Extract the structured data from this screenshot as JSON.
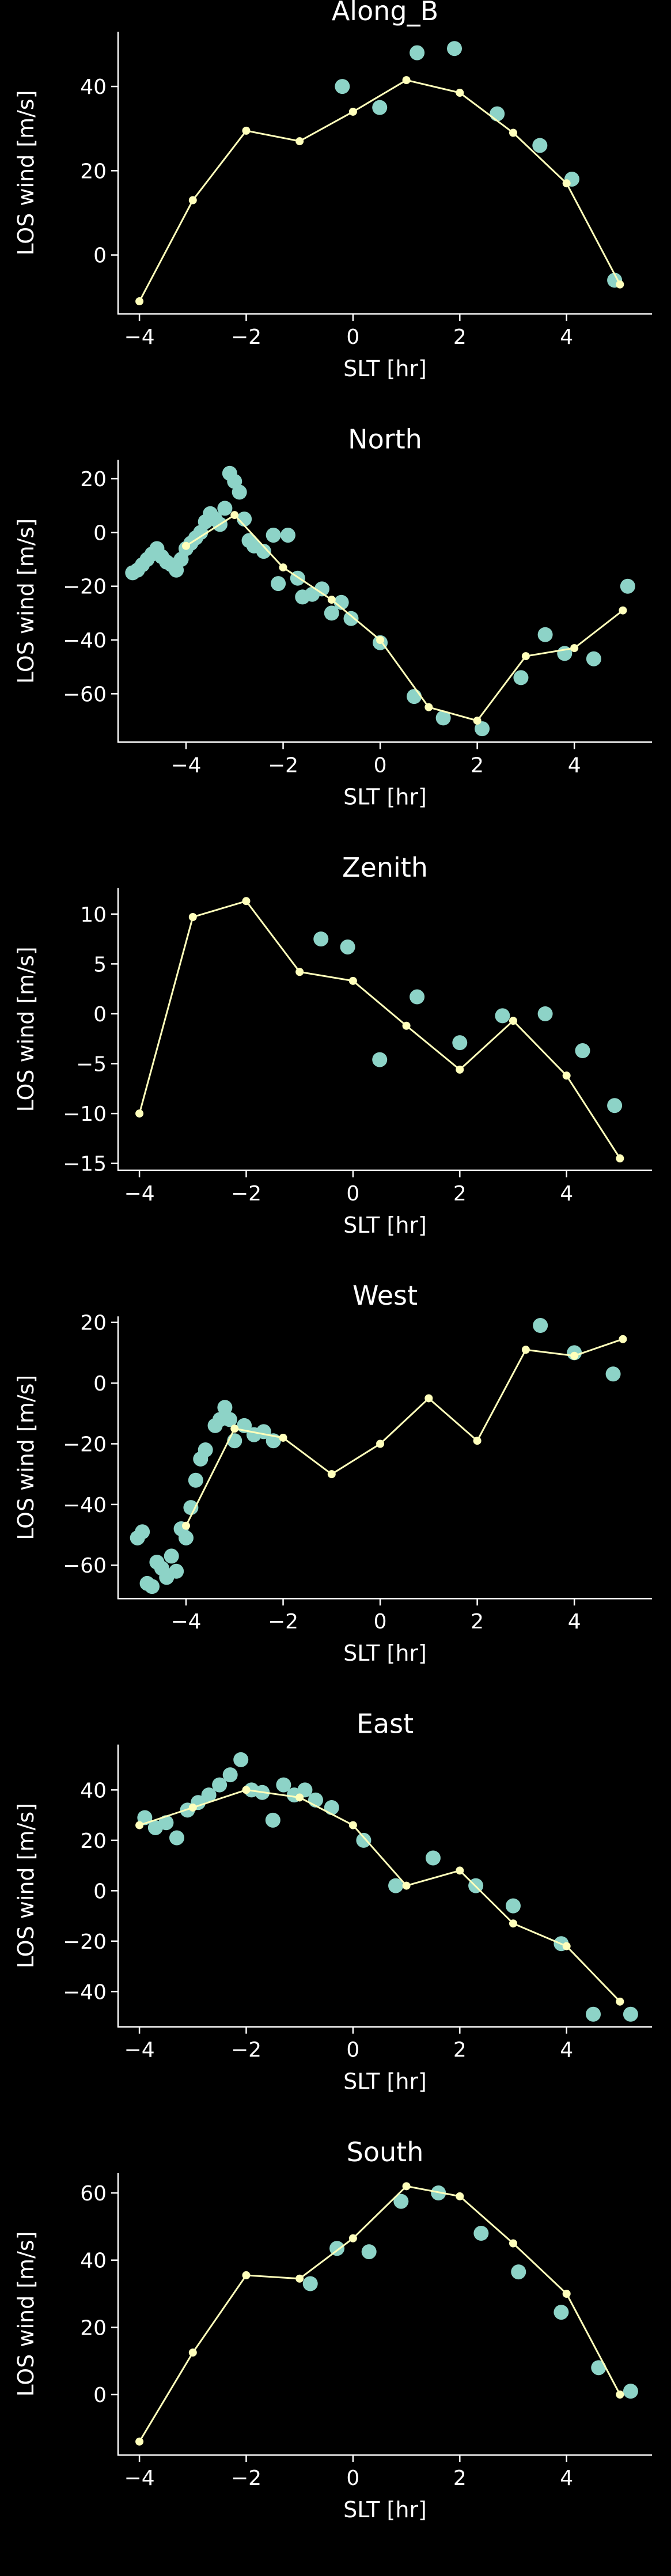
{
  "figure": {
    "background": "#000000",
    "axis_color": "#ffffff",
    "line_color": "#ffffbb",
    "scatter_color": "#8dd3c7"
  },
  "chart_data": [
    {
      "type": "line+scatter",
      "title": "Along_B",
      "xlabel": "SLT [hr]",
      "ylabel": "LOS wind [m/s]",
      "xlim": [
        -4.4,
        5.6
      ],
      "ylim": [
        -14,
        53
      ],
      "xticks": [
        -4,
        -2,
        0,
        2,
        4
      ],
      "yticks": [
        0,
        20,
        40
      ],
      "line": {
        "x": [
          -4,
          -3,
          -2,
          -1,
          0,
          1,
          2,
          3,
          4,
          5
        ],
        "y": [
          -11,
          13,
          29.5,
          27,
          34,
          41.5,
          38.5,
          29,
          17,
          -7
        ]
      },
      "points": {
        "x": [
          -0.2,
          0.5,
          1.2,
          1.9,
          2.7,
          3.5,
          4.1,
          4.9
        ],
        "y": [
          40,
          35,
          48,
          49,
          33.5,
          26,
          18,
          -6
        ]
      }
    },
    {
      "type": "line+scatter",
      "title": "North",
      "xlabel": "SLT [hr]",
      "ylabel": "LOS wind [m/s]",
      "xlim": [
        -5.4,
        5.6
      ],
      "ylim": [
        -78,
        27
      ],
      "xticks": [
        -4,
        -2,
        0,
        2,
        4
      ],
      "yticks": [
        -60,
        -40,
        -20,
        0,
        20
      ],
      "line": {
        "x": [
          -4,
          -3,
          -2,
          -1,
          0,
          1,
          2,
          3,
          4,
          5
        ],
        "y": [
          -5,
          6.5,
          -13,
          -25,
          -40,
          -65,
          -70,
          -46,
          -43,
          -29
        ]
      },
      "points": {
        "x": [
          -5.1,
          -5.0,
          -4.9,
          -4.8,
          -4.7,
          -4.6,
          -4.5,
          -4.4,
          -4.3,
          -4.2,
          -4.1,
          -4.0,
          -3.9,
          -3.8,
          -3.7,
          -3.6,
          -3.5,
          -3.4,
          -3.3,
          -3.2,
          -3.1,
          -3.0,
          -2.9,
          -2.8,
          -2.7,
          -2.6,
          -2.4,
          -2.2,
          -2.1,
          -1.9,
          -1.7,
          -1.6,
          -1.4,
          -1.2,
          -1.0,
          -0.8,
          -0.6,
          0.0,
          0.7,
          1.3,
          2.1,
          2.9,
          3.4,
          3.8,
          4.4,
          5.1
        ],
        "y": [
          -15,
          -14,
          -12,
          -10,
          -8,
          -6,
          -9,
          -11,
          -12,
          -14,
          -10,
          -6,
          -4,
          -2,
          0,
          4,
          7,
          5,
          3,
          9,
          22,
          19,
          15,
          5,
          -3,
          -5,
          -7,
          -1,
          -19,
          -1,
          -17,
          -24,
          -23,
          -21,
          -30,
          -26,
          -32,
          -41,
          -61,
          -69,
          -73,
          -54,
          -38,
          -45,
          -47,
          -20
        ]
      }
    },
    {
      "type": "line+scatter",
      "title": "Zenith",
      "xlabel": "SLT [hr]",
      "ylabel": "LOS wind [m/s]",
      "xlim": [
        -4.4,
        5.6
      ],
      "ylim": [
        -15.7,
        12.6
      ],
      "xticks": [
        -4,
        -2,
        0,
        2,
        4
      ],
      "yticks": [
        -15,
        -10,
        -5,
        0,
        5,
        10
      ],
      "line": {
        "x": [
          -4,
          -3,
          -2,
          -1,
          0,
          1,
          2,
          3,
          4,
          5
        ],
        "y": [
          -10,
          9.7,
          11.3,
          4.2,
          3.3,
          -1.2,
          -5.6,
          -0.7,
          -6.2,
          -14.5
        ]
      },
      "points": {
        "x": [
          -0.6,
          -0.1,
          0.5,
          1.2,
          2.0,
          2.8,
          3.6,
          4.3,
          4.9
        ],
        "y": [
          7.5,
          6.7,
          -4.6,
          1.7,
          -2.9,
          -0.2,
          0.0,
          -3.7,
          -9.2
        ]
      }
    },
    {
      "type": "line+scatter",
      "title": "West",
      "xlabel": "SLT [hr]",
      "ylabel": "LOS wind [m/s]",
      "xlim": [
        -5.4,
        5.6
      ],
      "ylim": [
        -71,
        22
      ],
      "xticks": [
        -4,
        -2,
        0,
        2,
        4
      ],
      "yticks": [
        -60,
        -40,
        -20,
        0,
        20
      ],
      "line": {
        "x": [
          -4,
          -3,
          -2,
          -1,
          0,
          1,
          2,
          3,
          4,
          5
        ],
        "y": [
          -47,
          -15,
          -18,
          -30,
          -20,
          -5,
          -19,
          11,
          9,
          14.5
        ]
      },
      "points": {
        "x": [
          -5.0,
          -4.9,
          -4.8,
          -4.7,
          -4.6,
          -4.5,
          -4.4,
          -4.3,
          -4.2,
          -4.1,
          -4.0,
          -3.9,
          -3.8,
          -3.7,
          -3.6,
          -3.4,
          -3.3,
          -3.2,
          -3.1,
          -3.0,
          -2.8,
          -2.6,
          -2.4,
          -2.2,
          3.3,
          4.0,
          4.8
        ],
        "y": [
          -51,
          -49,
          -66,
          -67,
          -59,
          -61,
          -64,
          -57,
          -62,
          -48,
          -51,
          -41,
          -32,
          -25,
          -22,
          -14,
          -12,
          -8,
          -12,
          -19,
          -14,
          -17,
          -16,
          -19,
          19,
          10,
          3
        ]
      }
    },
    {
      "type": "line+scatter",
      "title": "East",
      "xlabel": "SLT [hr]",
      "ylabel": "LOS wind [m/s]",
      "xlim": [
        -4.4,
        5.6
      ],
      "ylim": [
        -54,
        58
      ],
      "xticks": [
        -4,
        -2,
        0,
        2,
        4
      ],
      "yticks": [
        -40,
        -20,
        0,
        20,
        40
      ],
      "line": {
        "x": [
          -4,
          -3,
          -2,
          -1,
          0,
          1,
          2,
          3,
          4,
          5
        ],
        "y": [
          26,
          33,
          40,
          37,
          26,
          2,
          8,
          -13,
          -22,
          -44
        ]
      },
      "points": {
        "x": [
          -3.9,
          -3.7,
          -3.5,
          -3.3,
          -3.1,
          -2.9,
          -2.7,
          -2.5,
          -2.3,
          -2.1,
          -1.9,
          -1.7,
          -1.5,
          -1.3,
          -1.1,
          -0.9,
          -0.7,
          -0.4,
          0.2,
          0.8,
          1.5,
          2.3,
          3.0,
          3.9,
          4.5,
          5.2
        ],
        "y": [
          29,
          25,
          27,
          21,
          32,
          35,
          38,
          42,
          46,
          52,
          40,
          39,
          28,
          42,
          38,
          40,
          36,
          33,
          20,
          2,
          13,
          2,
          -6,
          -21,
          -49,
          -49
        ]
      }
    },
    {
      "type": "line+scatter",
      "title": "South",
      "xlabel": "SLT [hr]",
      "ylabel": "LOS wind [m/s]",
      "xlim": [
        -4.4,
        5.6
      ],
      "ylim": [
        -18,
        66
      ],
      "xticks": [
        -4,
        -2,
        0,
        2,
        4
      ],
      "yticks": [
        0,
        20,
        40,
        60
      ],
      "line": {
        "x": [
          -4,
          -3,
          -2,
          -1,
          0,
          1,
          2,
          3,
          4,
          5
        ],
        "y": [
          -14,
          12.5,
          35.5,
          34.5,
          46.5,
          62,
          59,
          45,
          30,
          0
        ]
      },
      "points": {
        "x": [
          -0.8,
          -0.3,
          0.3,
          0.9,
          1.6,
          2.4,
          3.1,
          3.9,
          4.6,
          5.2
        ],
        "y": [
          33,
          43.5,
          42.5,
          57.5,
          60,
          48,
          36.5,
          24.5,
          8,
          1
        ]
      }
    }
  ]
}
